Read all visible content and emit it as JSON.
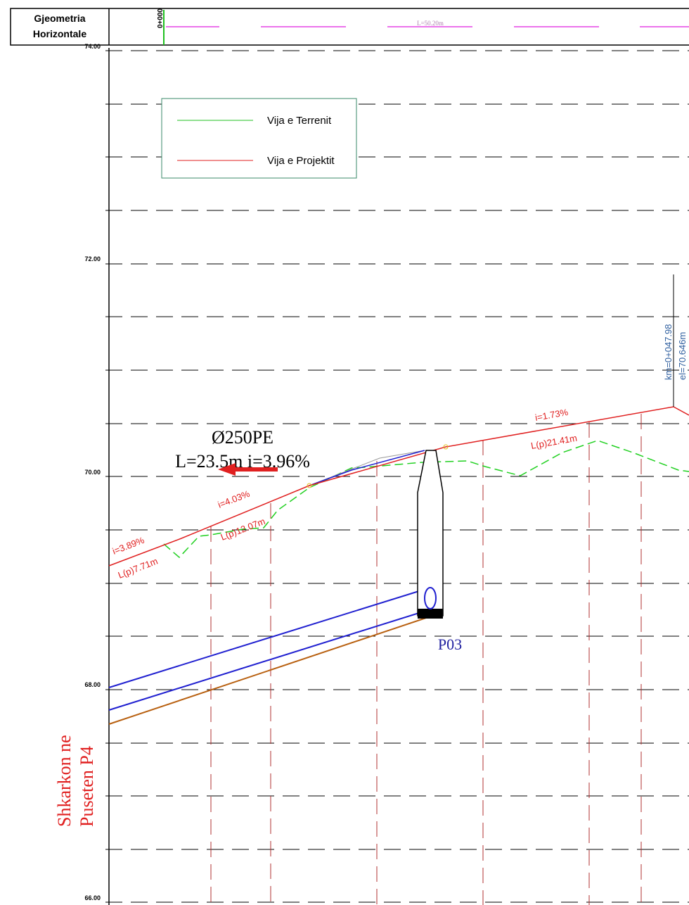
{
  "header": {
    "title": [
      "Gjeometria",
      "Horizontale"
    ],
    "station": "0+000",
    "segment_length": "L=50.20m"
  },
  "legend": {
    "items": [
      "Vija e Terrenit",
      "Vija e Projektit"
    ]
  },
  "elevations": [
    "74.00",
    "72.00",
    "70.00",
    "68.00",
    "66.00"
  ],
  "annotations": {
    "slopes": [
      "i=3.89%",
      "i=4.03%",
      "i=1.73%"
    ],
    "lengths": [
      "L(p)7.71m",
      "L(p)12.07m",
      "L(p)21.41m"
    ],
    "pipe": [
      "Ø250PE",
      "L=23.5m i=3.96%"
    ],
    "manhole": "P03",
    "station_mark": [
      "km=0+047.98",
      "el=70.646m"
    ],
    "discharge": [
      "Shkarkon ne",
      "Puseten P4"
    ]
  }
}
